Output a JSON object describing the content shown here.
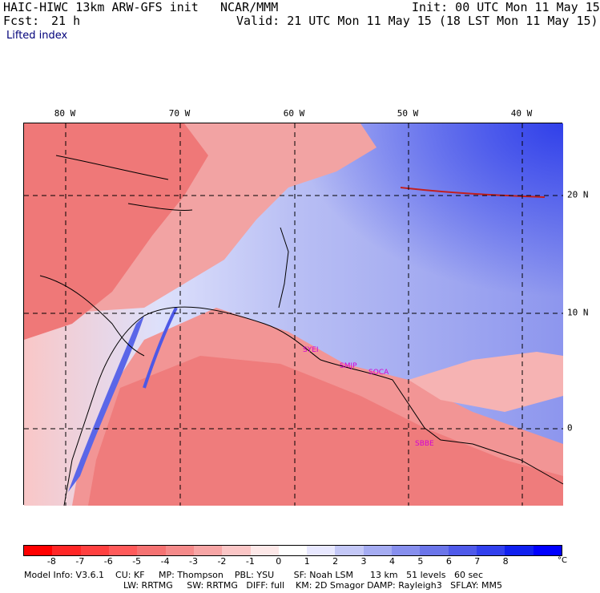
{
  "header": {
    "title_left": "HAIC-HIWC 13km ARW-GFS init",
    "title_center": "NCAR/MMM",
    "init": "Init: 00 UTC Mon 11 May 15",
    "fcst_label": "Fcst:",
    "fcst_value": "21 h",
    "valid": "Valid: 21 UTC Mon 11 May 15 (18 LST Mon 11 May 15)",
    "field": "Lifted index"
  },
  "map": {
    "lon_labels": [
      "80 W",
      "70 W",
      "60 W",
      "50 W",
      "40 W"
    ],
    "lat_labels": [
      "20 N",
      "10 N",
      "0"
    ],
    "stations": [
      "SYEI",
      "SMJP",
      "SOCA",
      "SBBE"
    ],
    "colors": {
      "warm": "#f07878",
      "cool": "#9fa8ee",
      "grid": "#000000"
    }
  },
  "colorbar": {
    "ticks": [
      "-8",
      "-7",
      "-6",
      "-5",
      "-4",
      "-3",
      "-2",
      "-1",
      "0",
      "1",
      "2",
      "3",
      "4",
      "5",
      "6",
      "7",
      "8"
    ],
    "unit": "°C",
    "colors": [
      "#ff0000",
      "#ff2626",
      "#ff4040",
      "#ff5a5a",
      "#f57272",
      "#f58a8a",
      "#f7a5a5",
      "#fbc6c6",
      "#fde8e8",
      "#ffffff",
      "#e8e8ff",
      "#c4c8f7",
      "#a5acf2",
      "#878fee",
      "#6b75ea",
      "#4f5aea",
      "#3240ee",
      "#1020f0",
      "#0000ff"
    ]
  },
  "footer": {
    "line1": "Model Info: V3.6.1    CU: KF     MP: Thompson    PBL: YSU       SF: Noah LSM      13 km   51 levels   60 sec",
    "line2": "LW: RRTMG     SW: RRTMG   DIFF: full    KM: 2D Smagor DAMP: Rayleigh3   SFLAY: MM5"
  }
}
